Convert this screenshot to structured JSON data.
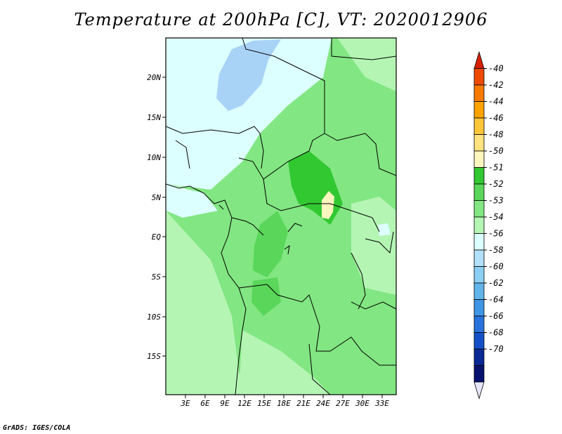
{
  "title": "Temperature at 200hPa [C], VT: 2020012906",
  "credit": "GrADS: IGES/COLA",
  "map": {
    "lat_labels": [
      "20N",
      "15N",
      "10N",
      "5N",
      "EQ",
      "5S",
      "10S",
      "15S"
    ],
    "lon_labels": [
      "3E",
      "6E",
      "9E",
      "12E",
      "15E",
      "18E",
      "21E",
      "24E",
      "27E",
      "30E",
      "33E"
    ]
  },
  "legend": {
    "labels": [
      "-40",
      "-42",
      "-44",
      "-46",
      "-48",
      "-50",
      "-51",
      "-52",
      "-53",
      "-54",
      "-56",
      "-58",
      "-60",
      "-62",
      "-64",
      "-66",
      "-68",
      "-70"
    ],
    "colors": [
      "#d62000",
      "#ec4a00",
      "#f77a00",
      "#fca300",
      "#fcc638",
      "#fee37e",
      "#fff5be",
      "#32c832",
      "#5ad65a",
      "#82e682",
      "#b4f5b4",
      "#dcffff",
      "#b3e1fa",
      "#8ccff5",
      "#63b4eb",
      "#4096e6",
      "#2873dc",
      "#1450c8",
      "#0a2896",
      "#06126e",
      "#e6e6fa"
    ]
  }
}
